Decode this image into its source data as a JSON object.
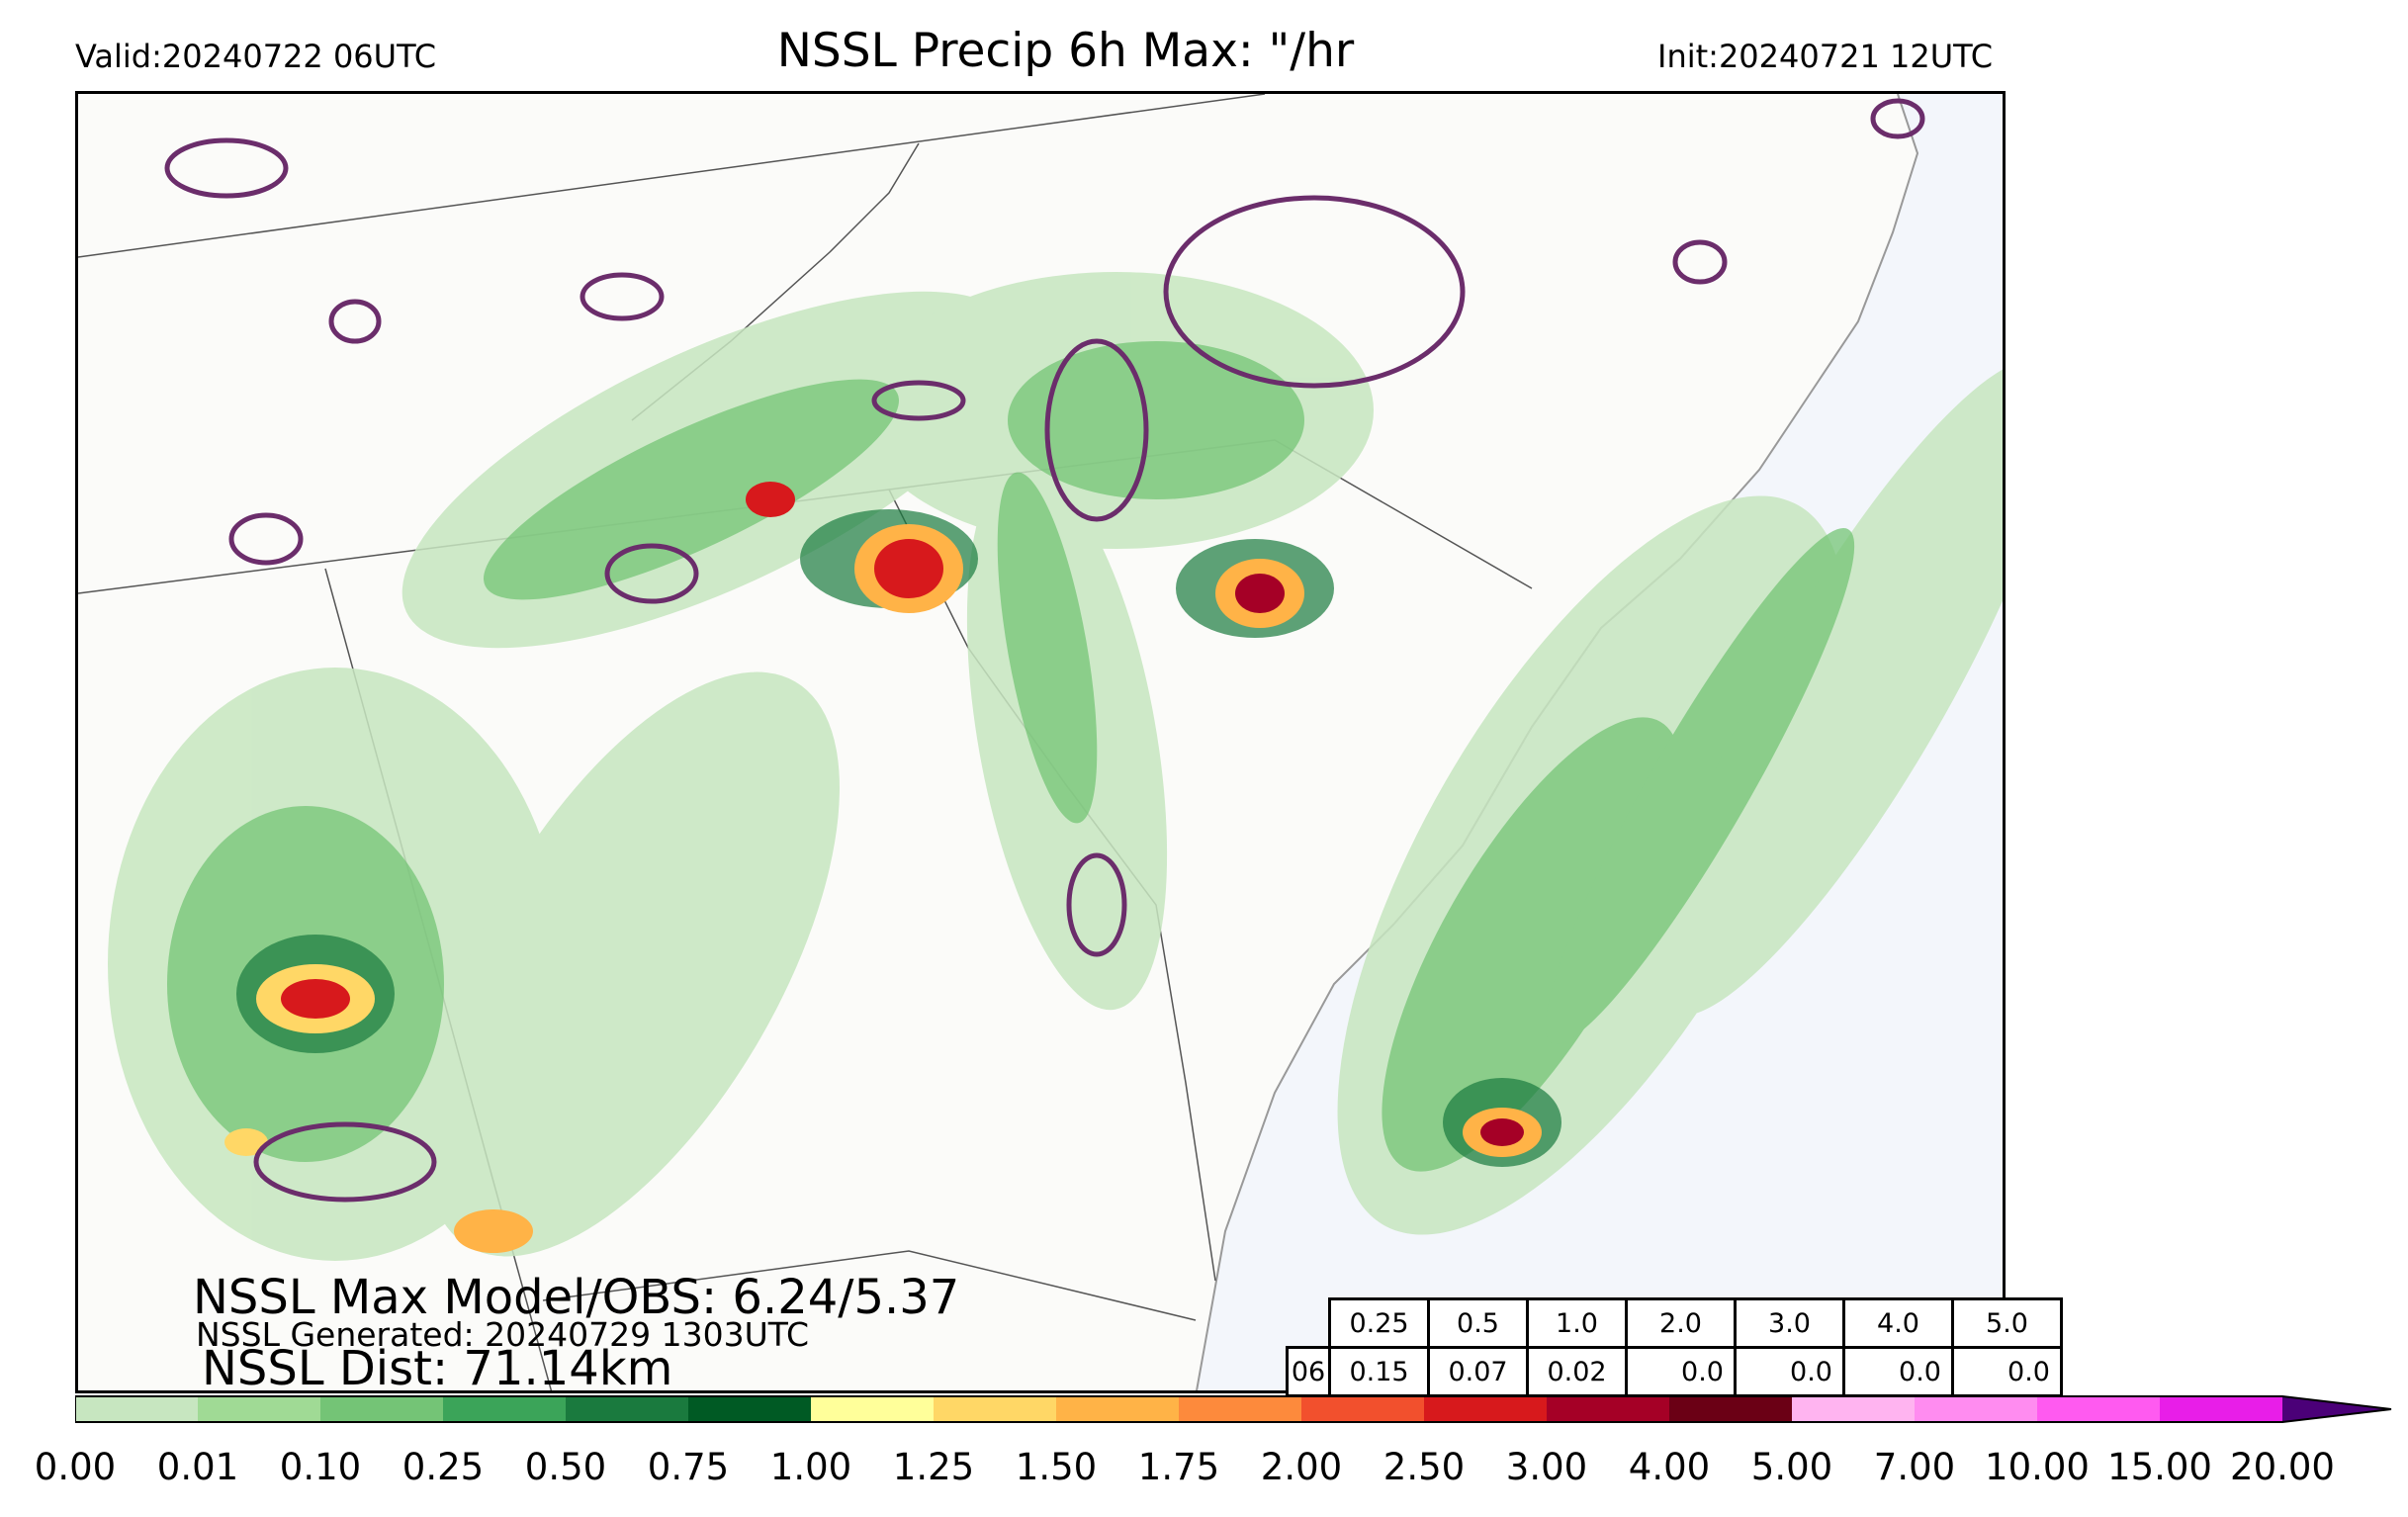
{
  "header": {
    "valid": "Valid:20240722 06UTC",
    "title": "NSSL Precip 6h Max: \"/hr",
    "init": "Init:20240721 12UTC"
  },
  "stats": {
    "max_model_obs": "NSSL Max Model/OBS: 6.24/5.37",
    "generated": "NSSL Generated: 20240729 1303UTC",
    "dist": "NSSL Dist: 71.14km"
  },
  "threshold_table": {
    "thresholds": [
      "0.25",
      "0.5",
      "1.0",
      "2.0",
      "3.0",
      "4.0",
      "5.0"
    ],
    "hour": "06",
    "values": [
      "0.15",
      "0.07",
      "0.02",
      "0.0",
      "0.0",
      "0.0",
      "0.0"
    ]
  },
  "colorbar": {
    "ticks": [
      "0.00",
      "0.01",
      "0.10",
      "0.25",
      "0.50",
      "0.75",
      "1.00",
      "1.25",
      "1.50",
      "1.75",
      "2.00",
      "2.50",
      "3.00",
      "4.00",
      "5.00",
      "7.00",
      "10.00",
      "15.00",
      "20.00"
    ],
    "colors": [
      "#ffffff",
      "#c7e6c0",
      "#a0da95",
      "#74c476",
      "#3ba459",
      "#1a7a3e",
      "#005a24",
      "#ffff9a",
      "#ffd766",
      "#ffb347",
      "#fd8a3c",
      "#f2502d",
      "#d7191c",
      "#a50026",
      "#6b0015",
      "#ffb4f0",
      "#ff8cf0",
      "#ff5af0",
      "#e81ee8",
      "#b40fd2",
      "#7d00b4"
    ],
    "extend_color": "#4b0078"
  },
  "map": {
    "land_color": "#fbfbf9",
    "ocean_color": "#f3f6fb",
    "obs_contour_color": "#6b2d6b"
  }
}
